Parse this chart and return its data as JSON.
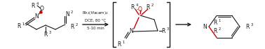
{
  "figsize": [
    3.78,
    0.7
  ],
  "dpi": 100,
  "bg_color": "#ffffff",
  "black": "#1a1a1a",
  "red": "#cc0000",
  "fs": 5.5,
  "fs_small": 3.8,
  "reagent1": "Rh$_2$(tfacam)$_4$",
  "reagent2": "DCE, 80 °C",
  "reagent3": "5-10 min"
}
